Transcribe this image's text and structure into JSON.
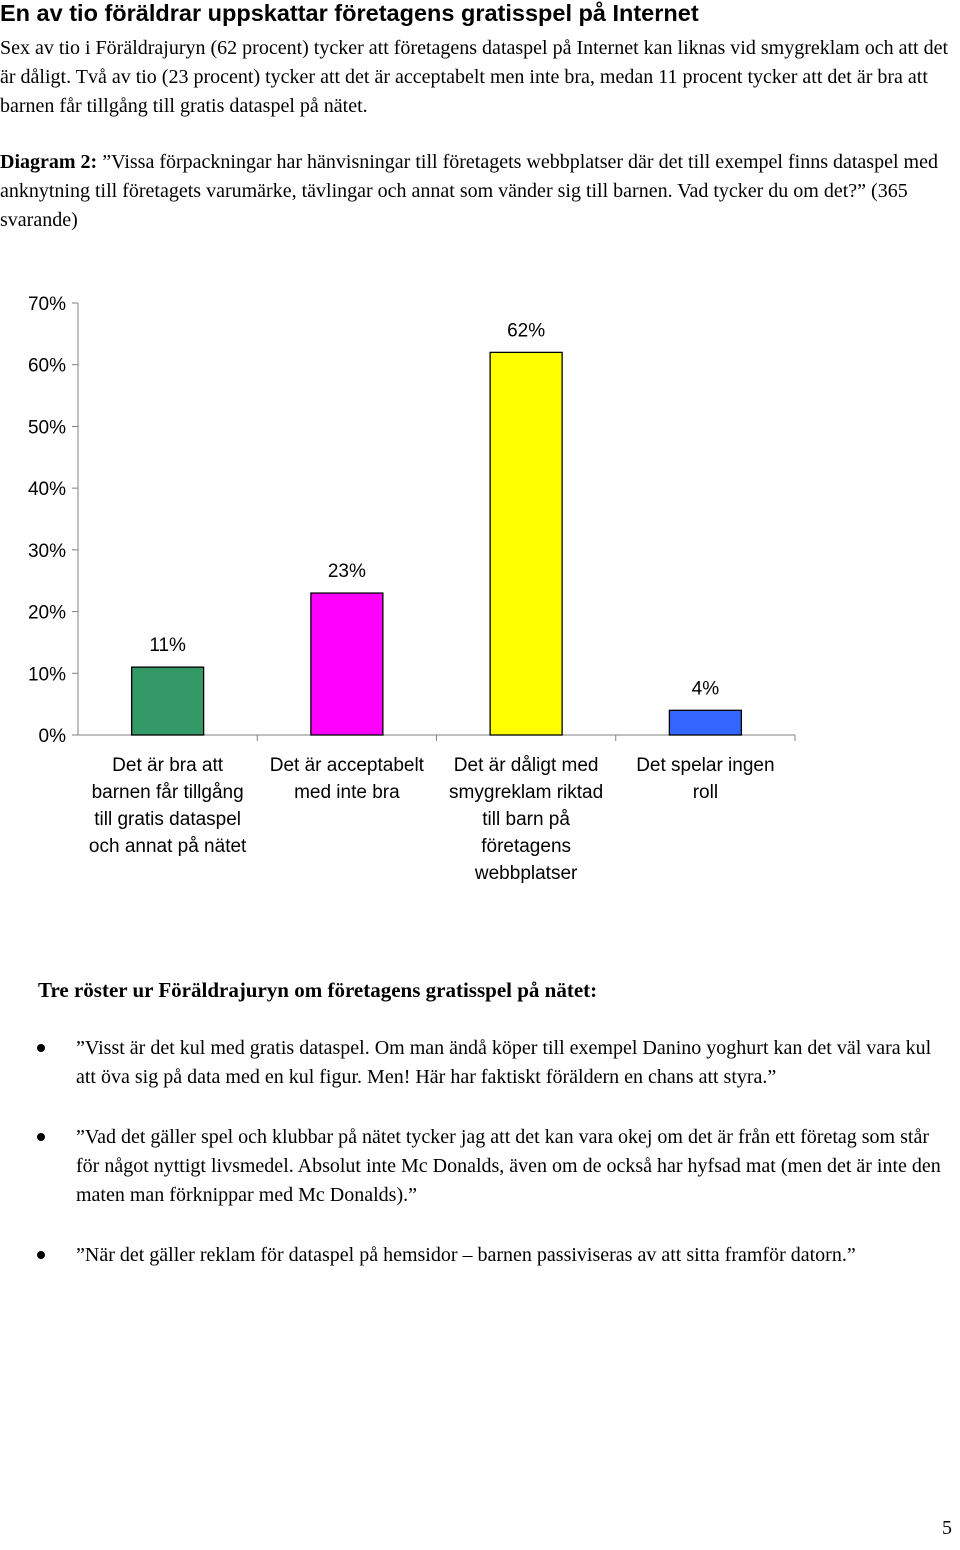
{
  "title": "En av tio föräldrar uppskattar företagens gratisspel på Internet",
  "intro": "Sex av tio i Föräldrajuryn (62 procent) tycker att företagens dataspel på Internet kan liknas vid smygreklam och att det är dåligt. Två av tio (23 procent) tycker att det är acceptabelt men inte bra, medan 11 procent tycker att det är bra att barnen får tillgång till gratis dataspel på nätet.",
  "caption": {
    "label": "Diagram 2:",
    "text": " ”Vissa förpackningar har hänvisningar till företagets webbplatser där det till exempel finns dataspel med anknytning till företagets varumärke, tävlingar och annat som vänder sig till barnen. Vad tycker du om det?” (365 svarande)"
  },
  "chart_data": {
    "type": "bar",
    "categories": [
      [
        "Det är bra att",
        "barnen får tillgång",
        "till gratis dataspel",
        "och annat på nätet"
      ],
      [
        "Det är acceptabelt",
        "med inte bra"
      ],
      [
        "Det är dåligt med",
        "smygreklam riktad",
        "till barn på",
        "företagens",
        "webbplatser"
      ],
      [
        "Det spelar ingen",
        "roll"
      ]
    ],
    "values": [
      11,
      23,
      62,
      4
    ],
    "value_labels": [
      "11%",
      "23%",
      "62%",
      "4%"
    ],
    "colors": [
      "#339966",
      "#ff00ff",
      "#ffff00",
      "#3366ff"
    ],
    "yticks": [
      "0%",
      "10%",
      "20%",
      "30%",
      "40%",
      "50%",
      "60%",
      "70%"
    ],
    "ylim": [
      0,
      70
    ],
    "grid": false,
    "legend": "none"
  },
  "quotes_heading": "Tre röster ur Föräldrajuryn om företagens gratisspel på nätet:",
  "quotes": [
    "”Visst är det kul med gratis dataspel. Om man ändå köper till exempel Danino yoghurt kan det väl vara kul att öva sig på data med en kul figur. Men! Här har faktiskt föräldern en chans att styra.”",
    "”Vad det gäller spel och klubbar på nätet tycker jag att det kan vara okej om det är från ett företag som står för något nyttigt livsmedel. Absolut inte Mc Donalds, även om de också har hyfsad mat (men det är inte den maten man förknippar med Mc Donalds).”",
    "”När det gäller reklam för dataspel på hemsidor – barnen passiviseras av att sitta framför datorn.”"
  ],
  "page_number": "5"
}
